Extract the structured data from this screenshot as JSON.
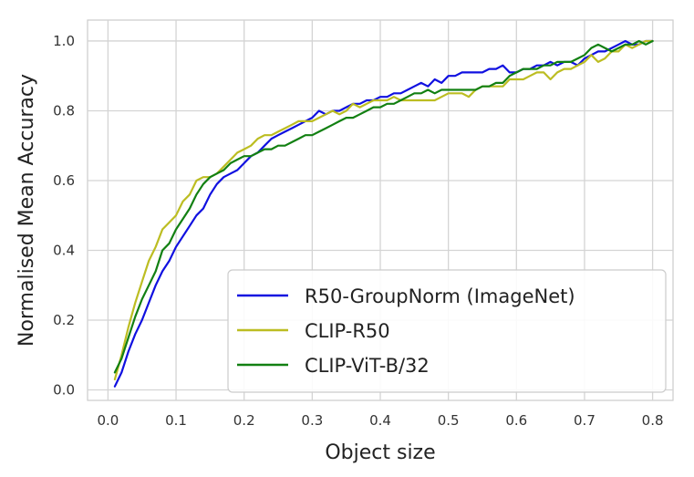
{
  "chart_data": {
    "type": "line",
    "xlabel": "Object size",
    "ylabel": "Normalised Mean Accuracy",
    "xlim": [
      -0.03,
      0.83
    ],
    "ylim": [
      -0.03,
      1.06
    ],
    "xticks": [
      0.0,
      0.1,
      0.2,
      0.3,
      0.4,
      0.5,
      0.6,
      0.7,
      0.8
    ],
    "xtick_labels": [
      "0.0",
      "0.1",
      "0.2",
      "0.3",
      "0.4",
      "0.5",
      "0.6",
      "0.7",
      "0.8"
    ],
    "yticks": [
      0.0,
      0.2,
      0.4,
      0.6,
      0.8,
      1.0
    ],
    "ytick_labels": [
      "0.0",
      "0.2",
      "0.4",
      "0.6",
      "0.8",
      "1.0"
    ],
    "grid": true,
    "legend_position": "lower-right",
    "series": [
      {
        "name": "R50-GroupNorm (ImageNet)",
        "color": "#1010e0",
        "x": [
          0.01,
          0.02,
          0.03,
          0.04,
          0.05,
          0.06,
          0.07,
          0.08,
          0.09,
          0.1,
          0.11,
          0.12,
          0.13,
          0.14,
          0.15,
          0.16,
          0.17,
          0.18,
          0.19,
          0.2,
          0.21,
          0.22,
          0.23,
          0.24,
          0.25,
          0.26,
          0.27,
          0.28,
          0.29,
          0.3,
          0.31,
          0.32,
          0.33,
          0.34,
          0.35,
          0.36,
          0.37,
          0.38,
          0.39,
          0.4,
          0.41,
          0.42,
          0.43,
          0.44,
          0.45,
          0.46,
          0.47,
          0.48,
          0.49,
          0.5,
          0.51,
          0.52,
          0.53,
          0.54,
          0.55,
          0.56,
          0.57,
          0.58,
          0.59,
          0.6,
          0.61,
          0.62,
          0.63,
          0.64,
          0.65,
          0.66,
          0.67,
          0.68,
          0.69,
          0.7,
          0.71,
          0.72,
          0.73,
          0.74,
          0.75,
          0.76,
          0.77,
          0.78,
          0.79,
          0.8
        ],
        "y": [
          0.01,
          0.05,
          0.11,
          0.16,
          0.2,
          0.25,
          0.3,
          0.34,
          0.37,
          0.41,
          0.44,
          0.47,
          0.5,
          0.52,
          0.56,
          0.59,
          0.61,
          0.62,
          0.63,
          0.65,
          0.67,
          0.68,
          0.7,
          0.72,
          0.73,
          0.74,
          0.75,
          0.76,
          0.77,
          0.78,
          0.8,
          0.79,
          0.8,
          0.8,
          0.81,
          0.82,
          0.82,
          0.83,
          0.83,
          0.84,
          0.84,
          0.85,
          0.85,
          0.86,
          0.87,
          0.88,
          0.87,
          0.89,
          0.88,
          0.9,
          0.9,
          0.91,
          0.91,
          0.91,
          0.91,
          0.92,
          0.92,
          0.93,
          0.91,
          0.91,
          0.92,
          0.92,
          0.93,
          0.93,
          0.94,
          0.93,
          0.94,
          0.94,
          0.93,
          0.95,
          0.96,
          0.97,
          0.97,
          0.98,
          0.99,
          1.0,
          0.99,
          0.99,
          1.0,
          1.0
        ]
      },
      {
        "name": "CLIP-R50",
        "color": "#bcbd22",
        "x": [
          0.01,
          0.02,
          0.03,
          0.04,
          0.05,
          0.06,
          0.07,
          0.08,
          0.09,
          0.1,
          0.11,
          0.12,
          0.13,
          0.14,
          0.15,
          0.16,
          0.17,
          0.18,
          0.19,
          0.2,
          0.21,
          0.22,
          0.23,
          0.24,
          0.25,
          0.26,
          0.27,
          0.28,
          0.29,
          0.3,
          0.31,
          0.32,
          0.33,
          0.34,
          0.35,
          0.36,
          0.37,
          0.38,
          0.39,
          0.4,
          0.41,
          0.42,
          0.43,
          0.44,
          0.45,
          0.46,
          0.47,
          0.48,
          0.49,
          0.5,
          0.51,
          0.52,
          0.53,
          0.54,
          0.55,
          0.56,
          0.57,
          0.58,
          0.59,
          0.6,
          0.61,
          0.62,
          0.63,
          0.64,
          0.65,
          0.66,
          0.67,
          0.68,
          0.69,
          0.7,
          0.71,
          0.72,
          0.73,
          0.74,
          0.75,
          0.76,
          0.77,
          0.78,
          0.79,
          0.8
        ],
        "y": [
          0.03,
          0.1,
          0.18,
          0.25,
          0.31,
          0.37,
          0.41,
          0.46,
          0.48,
          0.5,
          0.54,
          0.56,
          0.6,
          0.61,
          0.61,
          0.62,
          0.64,
          0.66,
          0.68,
          0.69,
          0.7,
          0.72,
          0.73,
          0.73,
          0.74,
          0.75,
          0.76,
          0.77,
          0.77,
          0.77,
          0.78,
          0.79,
          0.8,
          0.79,
          0.8,
          0.82,
          0.81,
          0.82,
          0.83,
          0.83,
          0.83,
          0.84,
          0.83,
          0.83,
          0.83,
          0.83,
          0.83,
          0.83,
          0.84,
          0.85,
          0.85,
          0.85,
          0.84,
          0.86,
          0.87,
          0.87,
          0.87,
          0.87,
          0.89,
          0.89,
          0.89,
          0.9,
          0.91,
          0.91,
          0.89,
          0.91,
          0.92,
          0.92,
          0.93,
          0.94,
          0.96,
          0.94,
          0.95,
          0.97,
          0.97,
          0.99,
          0.98,
          0.99,
          1.0,
          1.0
        ]
      },
      {
        "name": "CLIP-ViT-B/32",
        "color": "#128012",
        "x": [
          0.01,
          0.02,
          0.03,
          0.04,
          0.05,
          0.06,
          0.07,
          0.08,
          0.09,
          0.1,
          0.11,
          0.12,
          0.13,
          0.14,
          0.15,
          0.16,
          0.17,
          0.18,
          0.19,
          0.2,
          0.21,
          0.22,
          0.23,
          0.24,
          0.25,
          0.26,
          0.27,
          0.28,
          0.29,
          0.3,
          0.31,
          0.32,
          0.33,
          0.34,
          0.35,
          0.36,
          0.37,
          0.38,
          0.39,
          0.4,
          0.41,
          0.42,
          0.43,
          0.44,
          0.45,
          0.46,
          0.47,
          0.48,
          0.49,
          0.5,
          0.51,
          0.52,
          0.53,
          0.54,
          0.55,
          0.56,
          0.57,
          0.58,
          0.59,
          0.6,
          0.61,
          0.62,
          0.63,
          0.64,
          0.65,
          0.66,
          0.67,
          0.68,
          0.69,
          0.7,
          0.71,
          0.72,
          0.73,
          0.74,
          0.75,
          0.76,
          0.77,
          0.78,
          0.79,
          0.8
        ],
        "y": [
          0.05,
          0.09,
          0.15,
          0.21,
          0.26,
          0.3,
          0.34,
          0.4,
          0.42,
          0.46,
          0.49,
          0.52,
          0.56,
          0.59,
          0.61,
          0.62,
          0.63,
          0.65,
          0.66,
          0.67,
          0.67,
          0.68,
          0.69,
          0.69,
          0.7,
          0.7,
          0.71,
          0.72,
          0.73,
          0.73,
          0.74,
          0.75,
          0.76,
          0.77,
          0.78,
          0.78,
          0.79,
          0.8,
          0.81,
          0.81,
          0.82,
          0.82,
          0.83,
          0.84,
          0.85,
          0.85,
          0.86,
          0.85,
          0.86,
          0.86,
          0.86,
          0.86,
          0.86,
          0.86,
          0.87,
          0.87,
          0.88,
          0.88,
          0.9,
          0.91,
          0.92,
          0.92,
          0.92,
          0.93,
          0.93,
          0.94,
          0.94,
          0.94,
          0.95,
          0.96,
          0.98,
          0.99,
          0.98,
          0.97,
          0.98,
          0.99,
          0.99,
          1.0,
          0.99,
          1.0
        ]
      }
    ]
  }
}
